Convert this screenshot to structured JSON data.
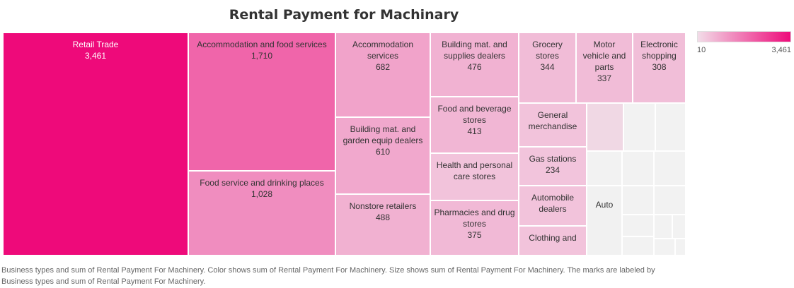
{
  "title": "Rental Payment for Machinary",
  "caption": "Business types and sum of Rental Payment For Machinery.  Color shows sum of Rental Payment For Machinery.  Size shows sum of Rental Payment For Machinery.  The marks are labeled by Business types and sum of Rental Payment For Machinery.",
  "legend": {
    "min_label": "10",
    "max_label": "3,461",
    "color_low": "#f2dce8",
    "color_high": "#ee0a7a"
  },
  "chart_data": {
    "type": "treemap",
    "title": "Rental Payment for Machinary",
    "size_measure": "sum of Rental Payment For Machinery",
    "color_range": [
      10,
      3461
    ],
    "items": [
      {
        "name": "Retail Trade",
        "value": 3461,
        "value_label": "3,461"
      },
      {
        "name": "Accommodation and food services",
        "value": 1710,
        "value_label": "1,710"
      },
      {
        "name": "Food service and drinking places",
        "value": 1028,
        "value_label": "1,028"
      },
      {
        "name": "Accommodation services",
        "value": 682,
        "value_label": "682"
      },
      {
        "name": "Building mat. and garden equip dealers",
        "value": 610,
        "value_label": "610"
      },
      {
        "name": "Nonstore retailers",
        "value": 488,
        "value_label": "488"
      },
      {
        "name": "Building mat. and supplies dealers",
        "value": 476,
        "value_label": "476"
      },
      {
        "name": "Food and beverage stores",
        "value": 413,
        "value_label": "413"
      },
      {
        "name": "Health and personal care stores",
        "value": null,
        "value_label": ""
      },
      {
        "name": "Pharmacies and drug stores",
        "value": 375,
        "value_label": "375"
      },
      {
        "name": "Grocery stores",
        "value": 344,
        "value_label": "344"
      },
      {
        "name": "Motor vehicle and parts",
        "value": 337,
        "value_label": "337"
      },
      {
        "name": "Electronic shopping",
        "value": 308,
        "value_label": "308"
      },
      {
        "name": "General merchandise",
        "value": null,
        "value_label": ""
      },
      {
        "name": "Gas stations",
        "value": 234,
        "value_label": "234"
      },
      {
        "name": "Automobile dealers",
        "value": null,
        "value_label": ""
      },
      {
        "name": "Clothing and",
        "value": null,
        "value_label": ""
      },
      {
        "name": "Auto",
        "value": null,
        "value_label": ""
      }
    ]
  }
}
